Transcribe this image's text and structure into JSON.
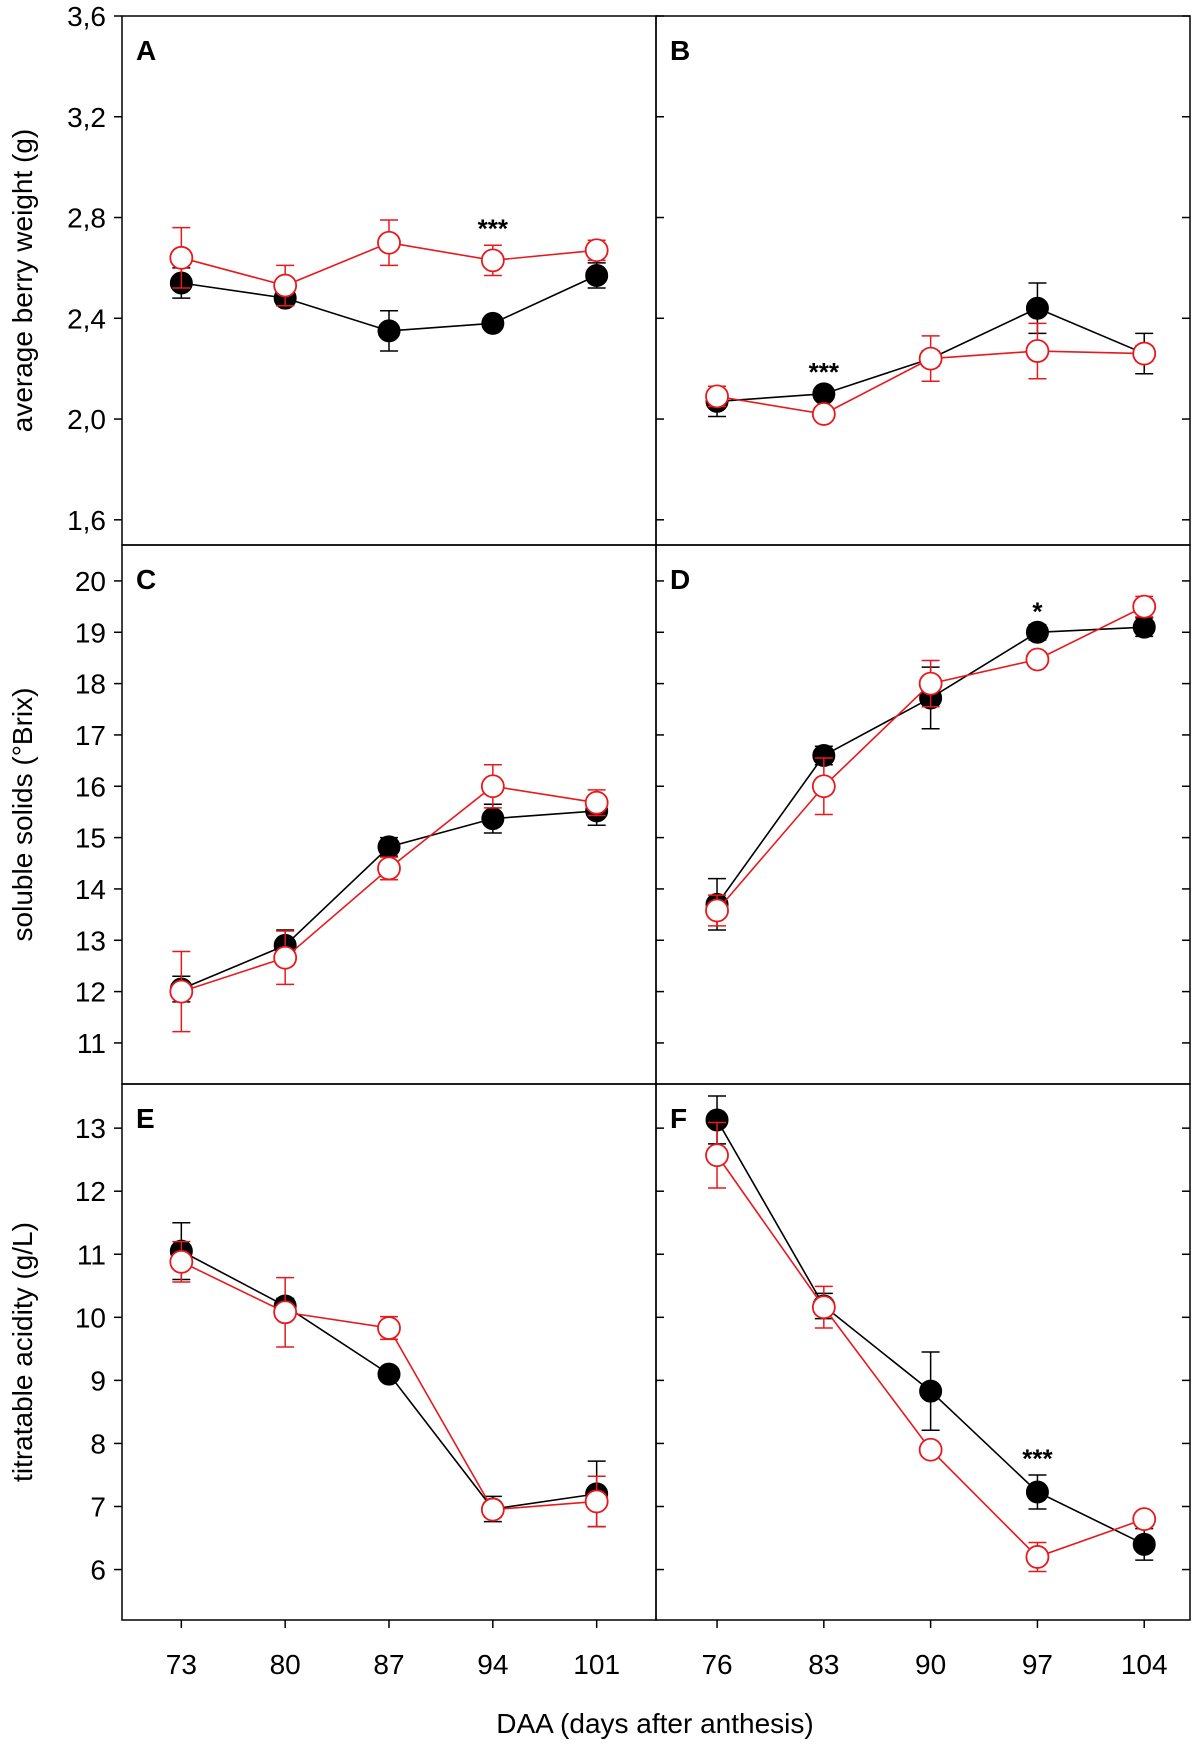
{
  "x_axis_label": "DAA (days after anthesis)",
  "colors": {
    "control": "#000000",
    "treatment": "#e8191c"
  },
  "chart_data": [
    {
      "panel": "A",
      "type": "line",
      "row": 0,
      "col": 0,
      "ylabel": "average berry weight (g)",
      "ylim": [
        1.5,
        3.6
      ],
      "yticks": [
        "1,6",
        "2,0",
        "2,4",
        "2,8",
        "3,2",
        "3,6"
      ],
      "ytick_values": [
        1.6,
        2.0,
        2.4,
        2.8,
        3.2,
        3.6
      ],
      "xlim": [
        69,
        105
      ],
      "xticks": [
        "73",
        "80",
        "87",
        "94",
        "101"
      ],
      "xtick_values": [
        73,
        80,
        87,
        94,
        101
      ],
      "series": [
        {
          "style": "filled",
          "color": "#000000",
          "x": [
            73,
            80,
            87,
            94,
            101
          ],
          "y": [
            2.54,
            2.48,
            2.35,
            2.38,
            2.57
          ],
          "err": [
            0.06,
            0.03,
            0.08,
            0.02,
            0.05
          ]
        },
        {
          "style": "open",
          "color": "#e8191c",
          "x": [
            73,
            80,
            87,
            94,
            101
          ],
          "y": [
            2.64,
            2.53,
            2.7,
            2.63,
            2.67
          ],
          "err": [
            0.12,
            0.08,
            0.09,
            0.06,
            0.04
          ]
        }
      ],
      "annotations": [
        {
          "text": "***",
          "x": 94,
          "y": 2.76
        }
      ]
    },
    {
      "panel": "B",
      "type": "line",
      "row": 0,
      "col": 1,
      "ylabel": "",
      "ylim": [
        1.5,
        3.6
      ],
      "yticks": [],
      "ytick_values": [
        1.6,
        2.0,
        2.4,
        2.8,
        3.2,
        3.6
      ],
      "xlim": [
        72,
        107
      ],
      "xticks": [],
      "xtick_values": [
        76,
        83,
        90,
        97,
        104
      ],
      "series": [
        {
          "style": "filled",
          "color": "#000000",
          "x": [
            76,
            83,
            90,
            97,
            104
          ],
          "y": [
            2.07,
            2.1,
            2.24,
            2.44,
            2.26
          ],
          "err": [
            0.06,
            0.02,
            0.03,
            0.1,
            0.08
          ]
        },
        {
          "style": "open",
          "color": "#e8191c",
          "x": [
            76,
            83,
            90,
            97,
            104
          ],
          "y": [
            2.09,
            2.02,
            2.24,
            2.27,
            2.26
          ],
          "err": [
            0.04,
            0.01,
            0.09,
            0.11,
            0.03
          ]
        }
      ],
      "annotations": [
        {
          "text": "***",
          "x": 83,
          "y": 2.19
        }
      ]
    },
    {
      "panel": "C",
      "type": "line",
      "row": 1,
      "col": 0,
      "ylabel": "soluble solids (°Brix)",
      "ylim": [
        10.2,
        20.7
      ],
      "yticks": [
        "11",
        "12",
        "13",
        "14",
        "15",
        "16",
        "17",
        "18",
        "19",
        "20"
      ],
      "ytick_values": [
        11,
        12,
        13,
        14,
        15,
        16,
        17,
        18,
        19,
        20
      ],
      "xlim": [
        69,
        105
      ],
      "xticks": [],
      "xtick_values": [
        73,
        80,
        87,
        94,
        101
      ],
      "series": [
        {
          "style": "filled",
          "color": "#000000",
          "x": [
            73,
            80,
            87,
            94,
            101
          ],
          "y": [
            12.05,
            12.9,
            14.82,
            15.37,
            15.52
          ],
          "err": [
            0.25,
            0.3,
            0.18,
            0.28,
            0.28
          ]
        },
        {
          "style": "open",
          "color": "#e8191c",
          "x": [
            73,
            80,
            87,
            94,
            101
          ],
          "y": [
            12.0,
            12.66,
            14.4,
            16.0,
            15.68
          ],
          "err": [
            0.78,
            0.52,
            0.22,
            0.42,
            0.25
          ]
        }
      ],
      "annotations": []
    },
    {
      "panel": "D",
      "type": "line",
      "row": 1,
      "col": 1,
      "ylabel": "",
      "ylim": [
        10.2,
        20.7
      ],
      "yticks": [],
      "ytick_values": [
        11,
        12,
        13,
        14,
        15,
        16,
        17,
        18,
        19,
        20
      ],
      "xlim": [
        72,
        107
      ],
      "xticks": [],
      "xtick_values": [
        76,
        83,
        90,
        97,
        104
      ],
      "series": [
        {
          "style": "filled",
          "color": "#000000",
          "x": [
            76,
            83,
            90,
            97,
            104
          ],
          "y": [
            13.7,
            16.6,
            17.72,
            19.0,
            19.1
          ],
          "err": [
            0.5,
            0.18,
            0.6,
            0.15,
            0.18
          ]
        },
        {
          "style": "open",
          "color": "#e8191c",
          "x": [
            76,
            83,
            90,
            97,
            104
          ],
          "y": [
            13.58,
            16.0,
            18.0,
            18.47,
            19.5
          ],
          "err": [
            0.3,
            0.55,
            0.45,
            0.08,
            0.2
          ]
        }
      ],
      "annotations": [
        {
          "text": "*",
          "x": 97,
          "y": 19.42
        }
      ]
    },
    {
      "panel": "E",
      "type": "line",
      "row": 2,
      "col": 0,
      "ylabel": "titratable acidity (g/L)",
      "ylim": [
        5.2,
        13.7
      ],
      "yticks": [
        "6",
        "7",
        "8",
        "9",
        "10",
        "11",
        "12",
        "13"
      ],
      "ytick_values": [
        6,
        7,
        8,
        9,
        10,
        11,
        12,
        13
      ],
      "xlim": [
        69,
        105
      ],
      "xticks": [
        "73",
        "80",
        "87",
        "94",
        "101"
      ],
      "xtick_values": [
        73,
        80,
        87,
        94,
        101
      ],
      "series": [
        {
          "style": "filled",
          "color": "#000000",
          "x": [
            73,
            80,
            87,
            94,
            101
          ],
          "y": [
            11.05,
            10.18,
            9.1,
            6.96,
            7.2
          ],
          "err": [
            0.45,
            0.12,
            0.1,
            0.2,
            0.52
          ]
        },
        {
          "style": "open",
          "color": "#e8191c",
          "x": [
            73,
            80,
            87,
            94,
            101
          ],
          "y": [
            10.88,
            10.08,
            9.83,
            6.95,
            7.08
          ],
          "err": [
            0.32,
            0.55,
            0.18,
            0.12,
            0.4
          ]
        }
      ],
      "annotations": []
    },
    {
      "panel": "F",
      "type": "line",
      "row": 2,
      "col": 1,
      "ylabel": "",
      "ylim": [
        5.2,
        13.7
      ],
      "yticks": [],
      "ytick_values": [
        6,
        7,
        8,
        9,
        10,
        11,
        12,
        13
      ],
      "xlim": [
        72,
        107
      ],
      "xticks": [
        "76",
        "83",
        "90",
        "97",
        "104"
      ],
      "xtick_values": [
        76,
        83,
        90,
        97,
        104
      ],
      "series": [
        {
          "style": "filled",
          "color": "#000000",
          "x": [
            76,
            83,
            90,
            97,
            104
          ],
          "y": [
            13.13,
            10.18,
            8.83,
            7.23,
            6.4
          ],
          "err": [
            0.38,
            0.2,
            0.62,
            0.27,
            0.25
          ]
        },
        {
          "style": "open",
          "color": "#e8191c",
          "x": [
            76,
            83,
            90,
            97,
            104
          ],
          "y": [
            12.57,
            10.16,
            7.9,
            6.2,
            6.8
          ],
          "err": [
            0.52,
            0.33,
            0.05,
            0.23,
            0.06
          ]
        }
      ],
      "annotations": [
        {
          "text": "***",
          "x": 97,
          "y": 7.78
        }
      ]
    }
  ]
}
